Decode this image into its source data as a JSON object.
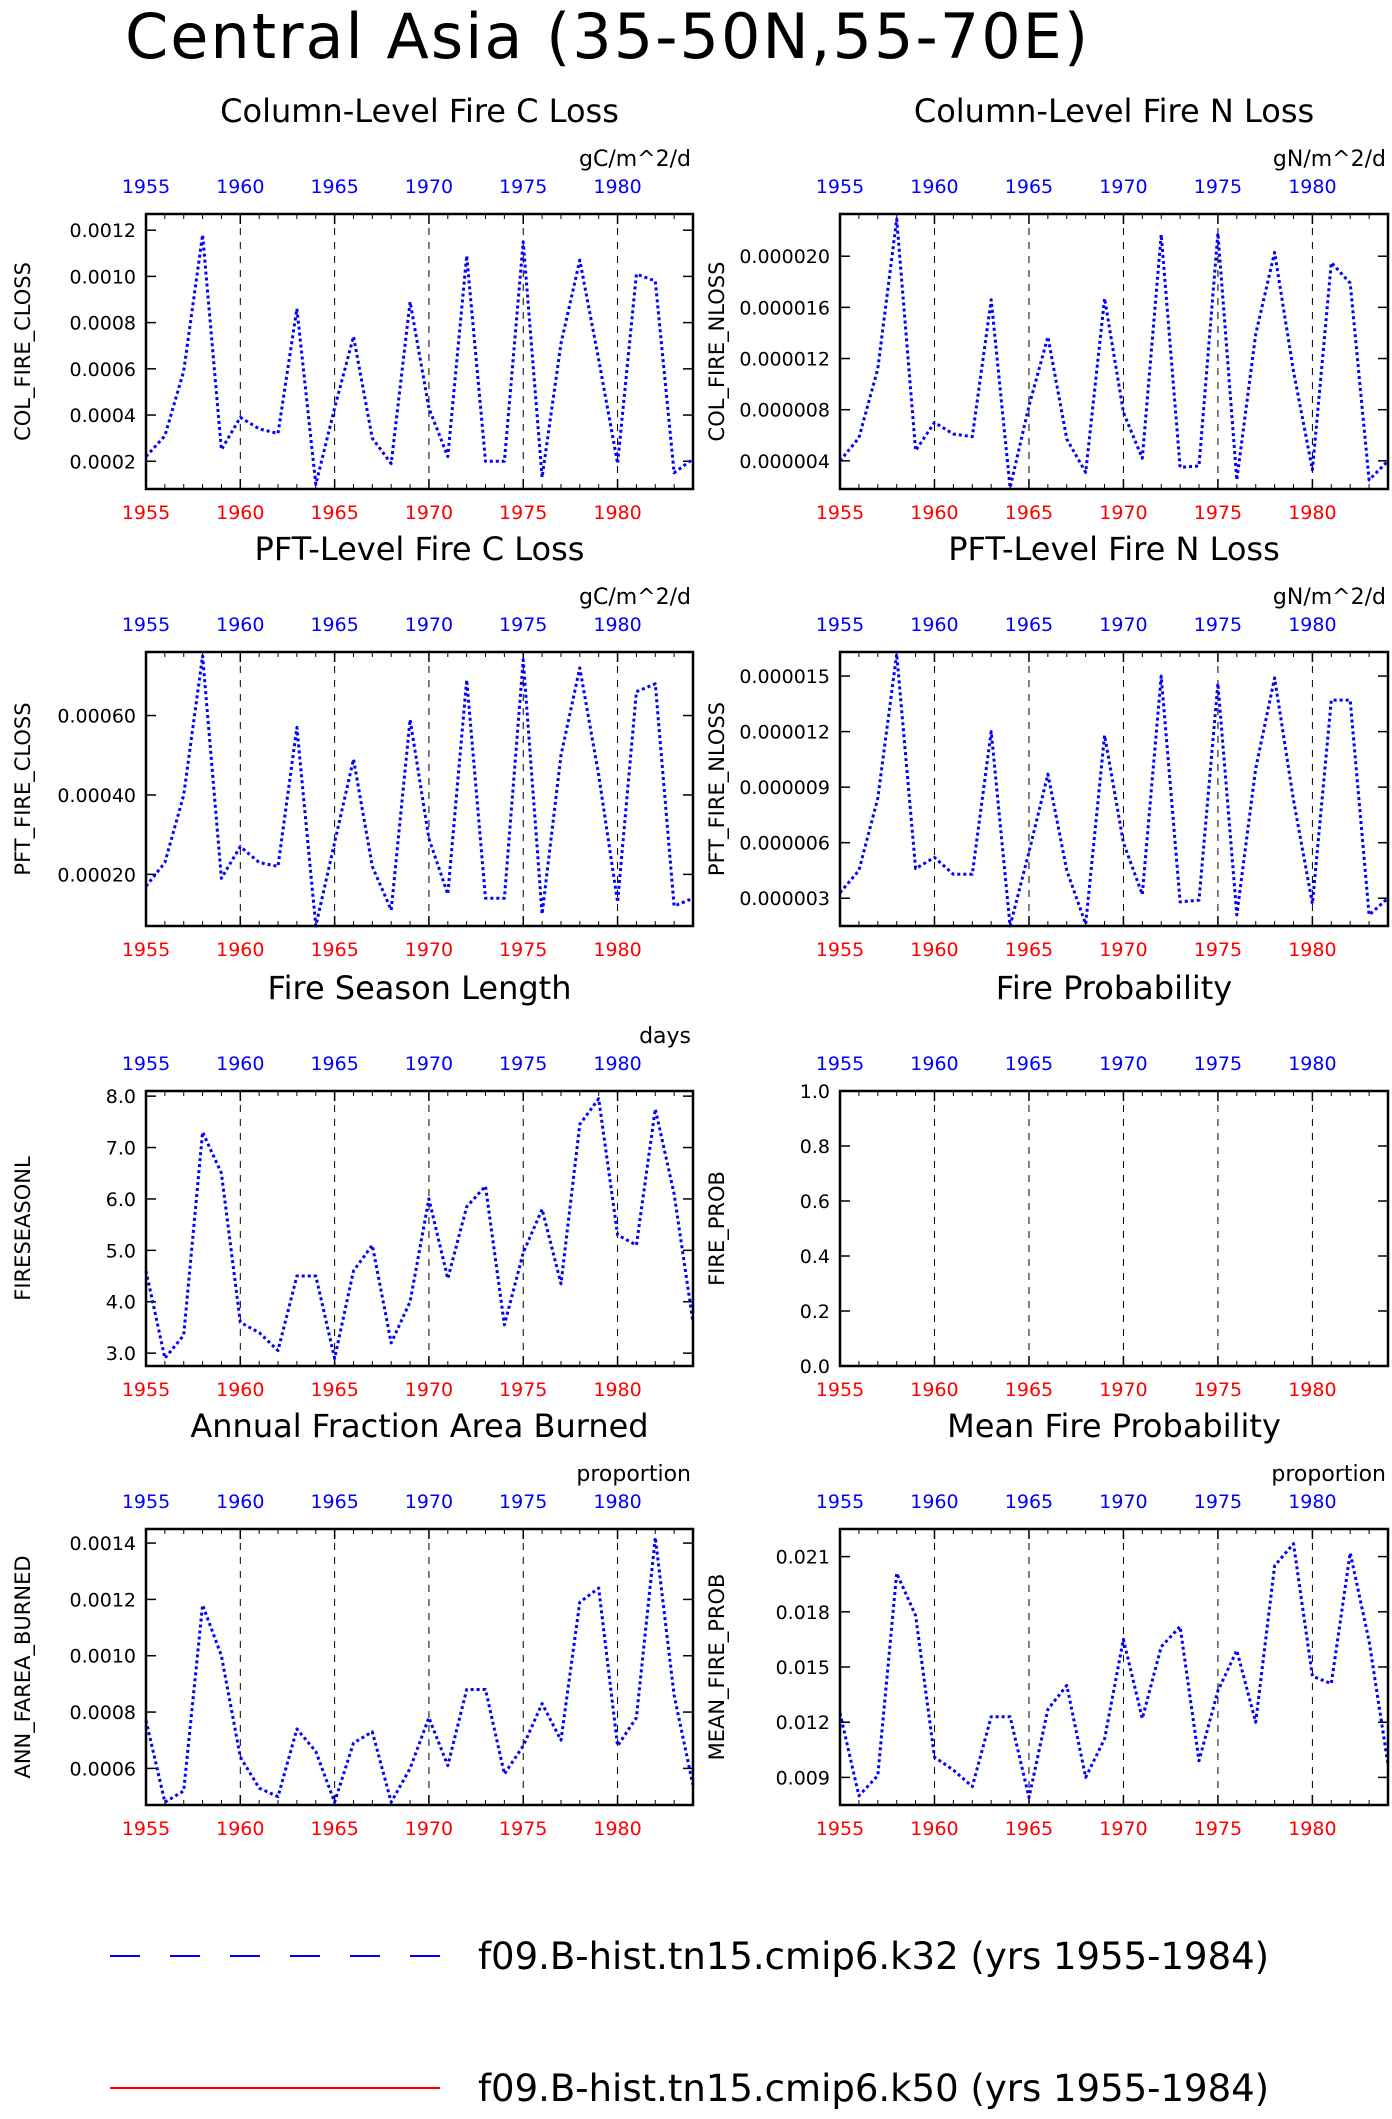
{
  "title": "Central Asia (35-50N,55-70E)",
  "colors": {
    "series1": "#0000ff",
    "series2": "#ff0000",
    "bottom_ticks": "#ff0000",
    "top_ticks": "#0000ff"
  },
  "legend": [
    {
      "label": "f09.B-hist.tn15.cmip6.k32 (yrs 1955-1984)",
      "color": "#0000ff",
      "style": "dashed"
    },
    {
      "label": "f09.B-hist.tn15.cmip6.k50 (yrs 1955-1984)",
      "color": "#ff0000",
      "style": "solid"
    }
  ],
  "chart_data": [
    {
      "type": "line",
      "title": "Column-Level Fire C Loss",
      "units": "gC/m^2/d",
      "ylabel": "COL_FIRE_CLOSS",
      "xlim": [
        1955,
        1984
      ],
      "ylim": [
        8e-05,
        0.00127
      ],
      "yticks": [
        0.0002,
        0.0004,
        0.0006,
        0.0008,
        0.001,
        0.0012
      ],
      "ytick_labels": [
        "0.0002",
        "0.0004",
        "0.0006",
        "0.0008",
        "0.0010",
        "0.0012"
      ],
      "x": [
        1955,
        1956,
        1957,
        1958,
        1959,
        1960,
        1961,
        1962,
        1963,
        1964,
        1965,
        1966,
        1967,
        1968,
        1969,
        1970,
        1971,
        1972,
        1973,
        1974,
        1975,
        1976,
        1977,
        1978,
        1979,
        1980,
        1981,
        1982,
        1983,
        1984
      ],
      "series": [
        {
          "values": [
            0.00022,
            0.00031,
            0.00059,
            0.00118,
            0.00025,
            0.00039,
            0.00034,
            0.00032,
            0.00086,
            0.0001,
            0.00043,
            0.00074,
            0.0003,
            0.00019,
            0.00089,
            0.00043,
            0.00022,
            0.00109,
            0.0002,
            0.0002,
            0.00115,
            0.00013,
            0.00071,
            0.00107,
            0.00064,
            0.00019,
            0.00101,
            0.00098,
            0.00015,
            0.00021
          ]
        }
      ]
    },
    {
      "type": "line",
      "title": "Column-Level Fire N Loss",
      "units": "gN/m^2/d",
      "ylabel": "COL_FIRE_NLOSS",
      "xlim": [
        1955,
        1984
      ],
      "ylim": [
        1.8e-06,
        2.33e-05
      ],
      "yticks": [
        4e-06,
        8e-06,
        1.2e-05,
        1.6e-05,
        2e-05
      ],
      "ytick_labels": [
        "0.000004",
        "0.000008",
        "0.000012",
        "0.000016",
        "0.000020"
      ],
      "x": [
        1955,
        1956,
        1957,
        1958,
        1959,
        1960,
        1961,
        1962,
        1963,
        1964,
        1965,
        1966,
        1967,
        1968,
        1969,
        1970,
        1971,
        1972,
        1973,
        1974,
        1975,
        1976,
        1977,
        1978,
        1979,
        1980,
        1981,
        1982,
        1983,
        1984
      ],
      "series": [
        {
          "values": [
            4e-06,
            5.8e-06,
            1.12e-05,
            2.29e-05,
            4.8e-06,
            7e-06,
            6.1e-06,
            5.9e-06,
            1.66e-05,
            1.9e-06,
            8.3e-06,
            1.37e-05,
            5.7e-06,
            3.1e-06,
            1.67e-05,
            7.8e-06,
            4.2e-06,
            2.17e-05,
            3.5e-06,
            3.6e-06,
            2.18e-05,
            2.5e-06,
            1.39e-05,
            2.03e-05,
            1.1e-05,
            3.3e-06,
            1.95e-05,
            1.79e-05,
            2.5e-06,
            4e-06
          ]
        }
      ]
    },
    {
      "type": "line",
      "title": "PFT-Level Fire C Loss",
      "units": "gC/m^2/d",
      "ylabel": "PFT_FIRE_CLOSS",
      "xlim": [
        1955,
        1984
      ],
      "ylim": [
        7e-05,
        0.00076
      ],
      "yticks": [
        0.0002,
        0.0004,
        0.0006
      ],
      "ytick_labels": [
        "0.00020",
        "0.00040",
        "0.00060"
      ],
      "x": [
        1955,
        1956,
        1957,
        1958,
        1959,
        1960,
        1961,
        1962,
        1963,
        1964,
        1965,
        1966,
        1967,
        1968,
        1969,
        1970,
        1971,
        1972,
        1973,
        1974,
        1975,
        1976,
        1977,
        1978,
        1979,
        1980,
        1981,
        1982,
        1983,
        1984
      ],
      "series": [
        {
          "values": [
            0.00017,
            0.00023,
            0.0004,
            0.00075,
            0.00019,
            0.00027,
            0.00023,
            0.00022,
            0.00057,
            7e-05,
            0.00028,
            0.00049,
            0.00022,
            0.00011,
            0.00059,
            0.00029,
            0.00015,
            0.00069,
            0.00014,
            0.00014,
            0.00074,
            0.0001,
            0.0005,
            0.00072,
            0.00045,
            0.00013,
            0.00066,
            0.00068,
            0.00012,
            0.00014
          ]
        }
      ]
    },
    {
      "type": "line",
      "title": "PFT-Level Fire N Loss",
      "units": "gN/m^2/d",
      "ylabel": "PFT_FIRE_NLOSS",
      "xlim": [
        1955,
        1984
      ],
      "ylim": [
        1.5e-06,
        1.63e-05
      ],
      "yticks": [
        3e-06,
        6e-06,
        9e-06,
        1.2e-05,
        1.5e-05
      ],
      "ytick_labels": [
        "0.000003",
        "0.000006",
        "0.000009",
        "0.000012",
        "0.000015"
      ],
      "x": [
        1955,
        1956,
        1957,
        1958,
        1959,
        1960,
        1961,
        1962,
        1963,
        1964,
        1965,
        1966,
        1967,
        1968,
        1969,
        1970,
        1971,
        1972,
        1973,
        1974,
        1975,
        1976,
        1977,
        1978,
        1979,
        1980,
        1981,
        1982,
        1983,
        1984
      ],
      "series": [
        {
          "values": [
            3.3e-06,
            4.5e-06,
            8.4e-06,
            1.62e-05,
            4.6e-06,
            5.2e-06,
            4.3e-06,
            4.3e-06,
            1.2e-05,
            1.5e-06,
            5.5e-06,
            9.7e-06,
            4.5e-06,
            1.6e-06,
            1.18e-05,
            6e-06,
            3.2e-06,
            1.5e-05,
            2.8e-06,
            2.9e-06,
            1.46e-05,
            2.1e-06,
            1e-05,
            1.49e-05,
            8.3e-06,
            2.7e-06,
            1.37e-05,
            1.37e-05,
            2.1e-06,
            3e-06
          ]
        }
      ]
    },
    {
      "type": "line",
      "title": "Fire Season Length",
      "units": "days",
      "ylabel": "FIRESEASONL",
      "xlim": [
        1955,
        1984
      ],
      "ylim": [
        2.75,
        8.1
      ],
      "yticks": [
        3,
        4,
        5,
        6,
        7,
        8
      ],
      "ytick_labels": [
        "3.0",
        "4.0",
        "5.0",
        "6.0",
        "7.0",
        "8.0"
      ],
      "x": [
        1955,
        1956,
        1957,
        1958,
        1959,
        1960,
        1961,
        1962,
        1963,
        1964,
        1965,
        1966,
        1967,
        1968,
        1969,
        1970,
        1971,
        1972,
        1973,
        1974,
        1975,
        1976,
        1977,
        1978,
        1979,
        1980,
        1981,
        1982,
        1983,
        1984
      ],
      "series": [
        {
          "values": [
            4.6,
            2.9,
            3.35,
            7.3,
            6.5,
            3.6,
            3.4,
            3.05,
            4.5,
            4.5,
            2.9,
            4.6,
            5.1,
            3.2,
            4.0,
            6.0,
            4.45,
            5.85,
            6.25,
            3.55,
            4.95,
            5.8,
            4.35,
            7.45,
            7.95,
            5.3,
            5.1,
            7.75,
            6.1,
            3.6
          ]
        }
      ]
    },
    {
      "type": "line",
      "title": "Fire Probability",
      "units": "",
      "ylabel": "FIRE_PROB",
      "xlim": [
        1955,
        1984
      ],
      "ylim": [
        0,
        1
      ],
      "yticks": [
        0,
        0.2,
        0.4,
        0.6,
        0.8,
        1.0
      ],
      "ytick_labels": [
        "0.0",
        "0.2",
        "0.4",
        "0.6",
        "0.8",
        "1.0"
      ],
      "x": [],
      "series": []
    },
    {
      "type": "line",
      "title": "Annual Fraction Area Burned",
      "units": "proportion",
      "ylabel": "ANN_FAREA_BURNED",
      "xlim": [
        1955,
        1984
      ],
      "ylim": [
        0.00047,
        0.00145
      ],
      "yticks": [
        0.0006,
        0.0008,
        0.001,
        0.0012,
        0.0014
      ],
      "ytick_labels": [
        "0.0006",
        "0.0008",
        "0.0010",
        "0.0012",
        "0.0014"
      ],
      "x": [
        1955,
        1956,
        1957,
        1958,
        1959,
        1960,
        1961,
        1962,
        1963,
        1964,
        1965,
        1966,
        1967,
        1968,
        1969,
        1970,
        1971,
        1972,
        1973,
        1974,
        1975,
        1976,
        1977,
        1978,
        1979,
        1980,
        1981,
        1982,
        1983,
        1984
      ],
      "series": [
        {
          "values": [
            0.00077,
            0.00048,
            0.00052,
            0.00118,
            0.001,
            0.00064,
            0.00053,
            0.0005,
            0.00074,
            0.00066,
            0.00048,
            0.00069,
            0.00073,
            0.00048,
            0.0006,
            0.00078,
            0.00061,
            0.00088,
            0.00088,
            0.00058,
            0.00068,
            0.00083,
            0.0007,
            0.00119,
            0.00124,
            0.00068,
            0.00078,
            0.00142,
            0.00086,
            0.00054
          ]
        }
      ]
    },
    {
      "type": "line",
      "title": "Mean Fire Probability",
      "units": "proportion",
      "ylabel": "MEAN_FIRE_PROB",
      "xlim": [
        1955,
        1984
      ],
      "ylim": [
        0.0075,
        0.0225
      ],
      "yticks": [
        0.009,
        0.012,
        0.015,
        0.018,
        0.021
      ],
      "ytick_labels": [
        "0.009",
        "0.012",
        "0.015",
        "0.018",
        "0.021"
      ],
      "x": [
        1955,
        1956,
        1957,
        1958,
        1959,
        1960,
        1961,
        1962,
        1963,
        1964,
        1965,
        1966,
        1967,
        1968,
        1969,
        1970,
        1971,
        1972,
        1973,
        1974,
        1975,
        1976,
        1977,
        1978,
        1979,
        1980,
        1981,
        1982,
        1983,
        1984
      ],
      "series": [
        {
          "values": [
            0.0125,
            0.008,
            0.0091,
            0.0201,
            0.0178,
            0.0101,
            0.0094,
            0.0085,
            0.0123,
            0.0123,
            0.0079,
            0.0127,
            0.014,
            0.009,
            0.0111,
            0.0165,
            0.0122,
            0.0161,
            0.0172,
            0.0099,
            0.0137,
            0.0159,
            0.012,
            0.0205,
            0.0217,
            0.0145,
            0.0141,
            0.0212,
            0.0164,
            0.0097
          ]
        }
      ]
    }
  ]
}
